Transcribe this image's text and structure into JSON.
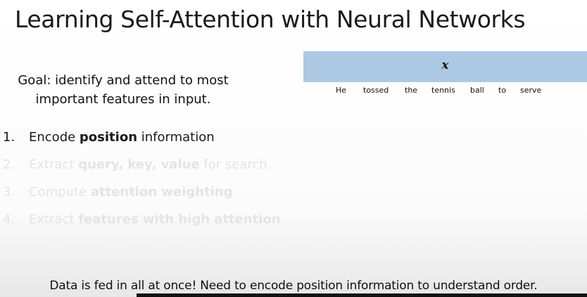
{
  "slide": {
    "title": "Learning Self-Attention with Neural Networks",
    "goal": {
      "line1": "Goal: identify and attend to most",
      "line2": "important features in input."
    },
    "steps": [
      {
        "number": "1.",
        "pre": "Encode ",
        "bold": "position",
        "post": " information",
        "state": "active"
      },
      {
        "number": "2.",
        "pre": "Extract ",
        "bold": "query, key, value",
        "post": " for search",
        "state": "faded"
      },
      {
        "number": "3.",
        "pre": "Compute ",
        "bold": "attention weighting",
        "post": "",
        "state": "faded"
      },
      {
        "number": "4.",
        "pre": "Extract ",
        "bold": "features with high attention",
        "post": "",
        "state": "faded"
      }
    ],
    "input_label": "x",
    "words": [
      "He",
      "tossed",
      "the",
      "tennis",
      "ball",
      "to",
      "serve"
    ],
    "caption": "Data is fed in all at once! Need to encode position information to understand order."
  },
  "colors": {
    "input_bar": "#adc8e3",
    "active_text": "#1a1a1a",
    "faded_text": "#e4e4e4"
  }
}
